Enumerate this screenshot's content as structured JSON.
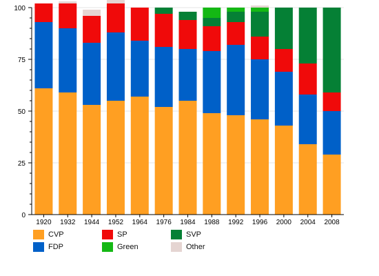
{
  "chart_data": {
    "type": "bar",
    "stacked": true,
    "title": "",
    "xlabel": "",
    "ylabel": "",
    "ylim": [
      0,
      100
    ],
    "yticks": [
      "0",
      "25",
      "50",
      "75",
      "100"
    ],
    "grid": true,
    "legend_position": "bottom-left",
    "categories": [
      "1920",
      "1932",
      "1944",
      "1952",
      "1964",
      "1976",
      "1984",
      "1988",
      "1992",
      "1996",
      "2000",
      "2004",
      "2008"
    ],
    "series": [
      {
        "name": "CVP",
        "color": "#ff9f22",
        "values": [
          61,
          59,
          53,
          55,
          57,
          52,
          55,
          49,
          48,
          46,
          43,
          34,
          29
        ]
      },
      {
        "name": "FDP",
        "color": "#0060c8",
        "values": [
          32,
          31,
          30,
          33,
          27,
          29,
          25,
          30,
          34,
          29,
          26,
          24,
          21
        ]
      },
      {
        "name": "SP",
        "color": "#f00a0a",
        "values": [
          9,
          12,
          13,
          14,
          16,
          16,
          14,
          12,
          11,
          11,
          11,
          15,
          9
        ]
      },
      {
        "name": "SVP",
        "color": "#058035",
        "values": [
          0,
          0,
          0,
          0,
          0,
          3,
          4,
          4,
          5,
          12,
          20,
          27,
          41
        ]
      },
      {
        "name": "Green",
        "color": "#14b814",
        "values": [
          0,
          0,
          0,
          0,
          0,
          0,
          0,
          5,
          2,
          2,
          0,
          0,
          0
        ]
      },
      {
        "name": "Other",
        "color": "#e5d5d2",
        "values": [
          0,
          1,
          3,
          3,
          0,
          0,
          0,
          0,
          0,
          1,
          0,
          0,
          0
        ]
      }
    ],
    "legend": [
      {
        "name": "CVP",
        "color": "#ff9f22"
      },
      {
        "name": "FDP",
        "color": "#0060c8"
      },
      {
        "name": "SP",
        "color": "#f00a0a"
      },
      {
        "name": "Green",
        "color": "#14b814"
      },
      {
        "name": "SVP",
        "color": "#058035"
      },
      {
        "name": "Other",
        "color": "#e5d5d2"
      }
    ]
  }
}
